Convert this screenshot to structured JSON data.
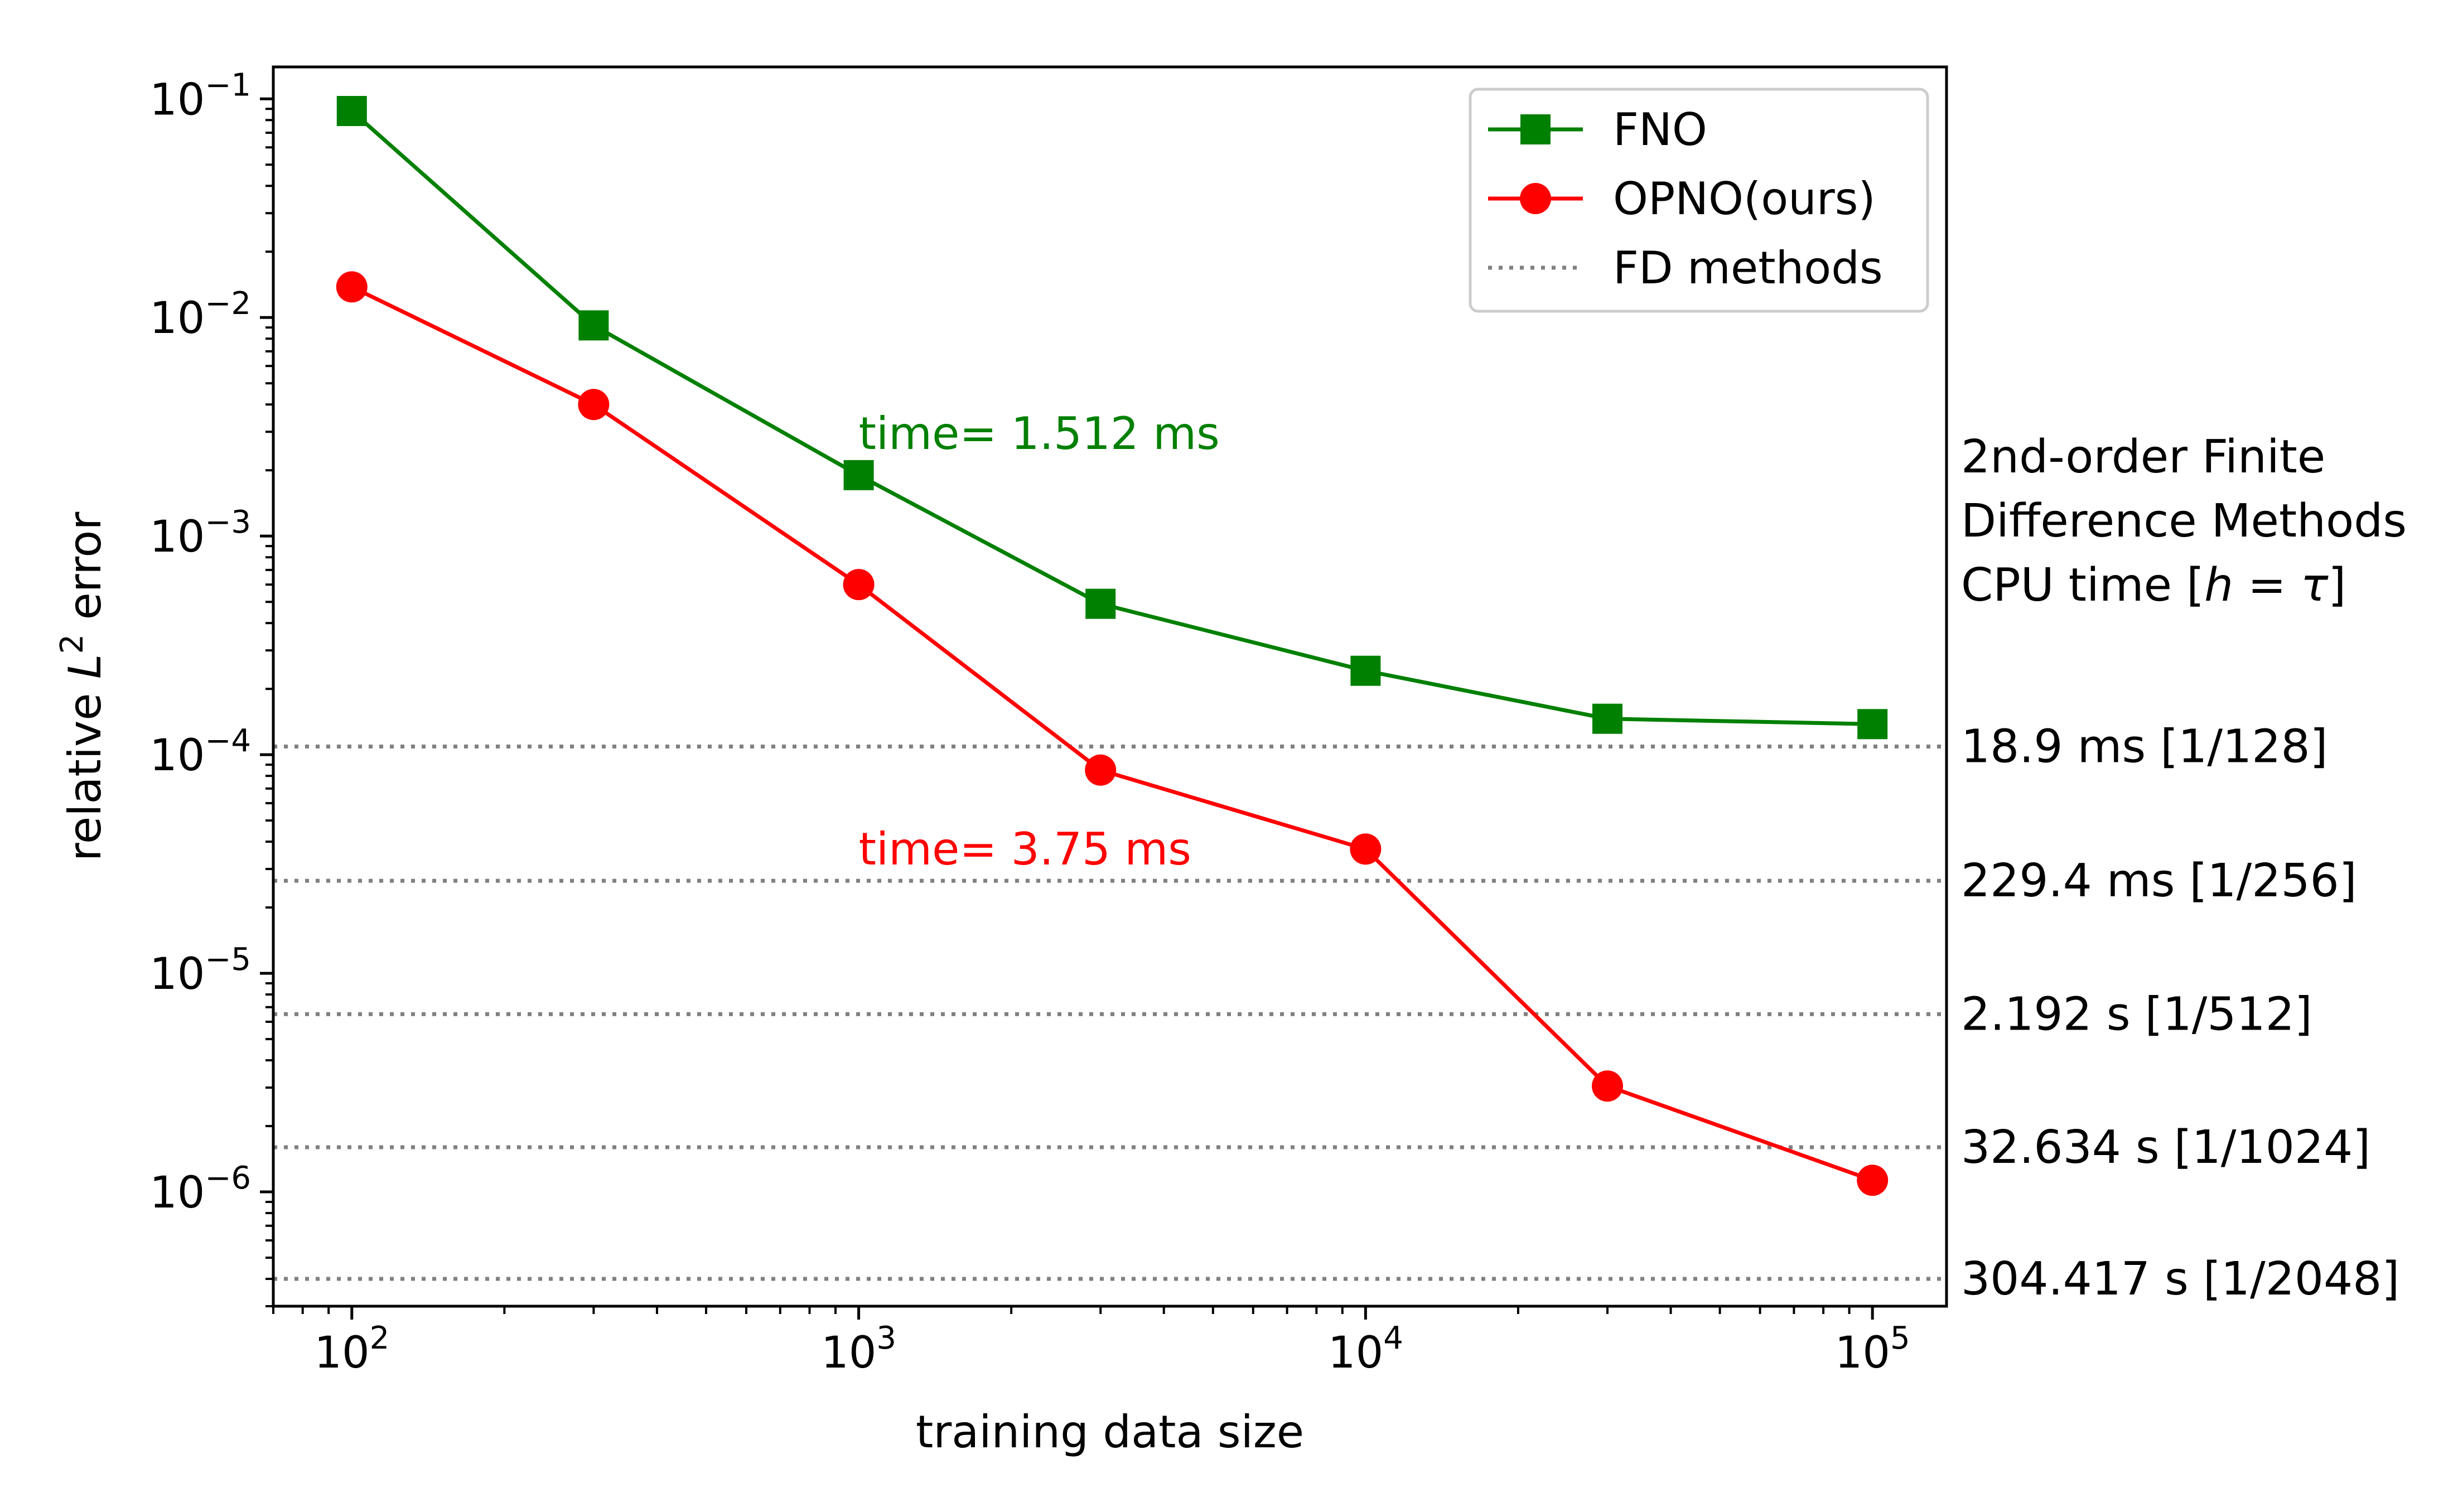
{
  "chart_data": {
    "type": "line",
    "xscale": "log",
    "yscale": "log",
    "xlabel": "training data size",
    "ylabel_prefix": "relative ",
    "ylabel_var": "L",
    "ylabel_sup": "2",
    "ylabel_suffix": " error",
    "xlim": [
      70,
      140000
    ],
    "ylim": [
      3e-07,
      0.14
    ],
    "xticks": [
      {
        "value": 100,
        "base": "10",
        "exp": "2"
      },
      {
        "value": 1000,
        "base": "10",
        "exp": "3"
      },
      {
        "value": 10000,
        "base": "10",
        "exp": "4"
      },
      {
        "value": 100000,
        "base": "10",
        "exp": "5"
      }
    ],
    "yticks": [
      {
        "value": 1e-06,
        "base": "10",
        "exp": "−6"
      },
      {
        "value": 1e-05,
        "base": "10",
        "exp": "−5"
      },
      {
        "value": 0.0001,
        "base": "10",
        "exp": "−4"
      },
      {
        "value": 0.001,
        "base": "10",
        "exp": "−3"
      },
      {
        "value": 0.01,
        "base": "10",
        "exp": "−2"
      },
      {
        "value": 0.1,
        "base": "10",
        "exp": "−1"
      }
    ],
    "series": [
      {
        "name": "FNO",
        "color": "#008000",
        "marker": "square",
        "x": [
          100,
          300,
          1000,
          3000,
          10000,
          30000,
          100000
        ],
        "y": [
          0.088,
          0.0092,
          0.0019,
          0.00049,
          0.000242,
          0.000146,
          0.000138
        ]
      },
      {
        "name": "OPNO(ours)",
        "color": "#ff0000",
        "marker": "circle",
        "x": [
          100,
          300,
          1000,
          3000,
          10000,
          30000,
          100000
        ],
        "y": [
          0.0138,
          0.004,
          0.0006,
          8.5e-05,
          3.7e-05,
          3.05e-06,
          1.13e-06
        ]
      }
    ],
    "reference_lines": {
      "name": "FD methods",
      "color": "#808080",
      "style": "dotted",
      "lines": [
        {
          "y": 0.000109,
          "label": "18.9 ms [1/128]"
        },
        {
          "y": 2.65e-05,
          "label": "229.4 ms [1/256]"
        },
        {
          "y": 6.5e-06,
          "label": "2.192 s [1/512]"
        },
        {
          "y": 1.6e-06,
          "label": "32.634 s [1/1024]"
        },
        {
          "y": 4e-07,
          "label": "304.417 s [1/2048]"
        }
      ]
    },
    "annotations": [
      {
        "text": "time= 1.512 ms",
        "x": 1000,
        "y": 0.0025,
        "color": "#008000"
      },
      {
        "text": "time= 3.75 ms",
        "x": 1000,
        "y": 3.15e-05,
        "color": "#ff0000"
      }
    ],
    "side_header": [
      "2nd-order Finite",
      "Difference Methods",
      "CPU time ["
    ],
    "side_header_math": {
      "h": "h",
      "eq": " = ",
      "tau": "τ",
      "close": "]"
    },
    "legend": {
      "position": "top-right",
      "entries": [
        "FNO",
        "OPNO(ours)",
        "FD methods"
      ]
    }
  }
}
